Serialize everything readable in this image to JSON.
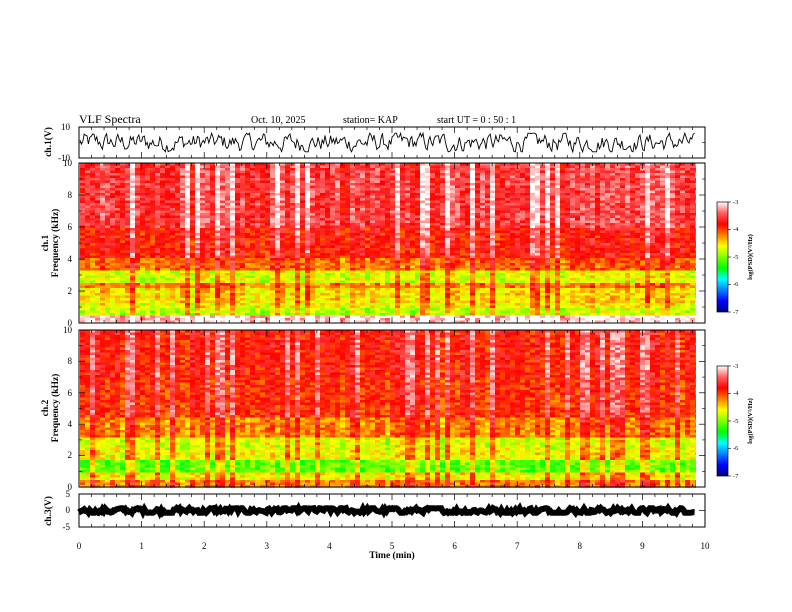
{
  "header": {
    "title": "VLF Spectra",
    "date": "Oct. 10, 2025",
    "station": "station= KAP",
    "start": "start  UT  =   0  : 50 : 1"
  },
  "colors": {
    "spectrum_ramp": [
      "#000080",
      "#0000ff",
      "#0080ff",
      "#00ffff",
      "#00ff00",
      "#80ff00",
      "#ffff00",
      "#ff8000",
      "#ff0000",
      "#ff6060",
      "#ffffff"
    ],
    "axis": "#000000",
    "background": "#ffffff"
  },
  "chart_data": [
    {
      "id": "ch1-waveform",
      "type": "line",
      "ylabel": "ch.1(V)",
      "ylim": [
        -10,
        10
      ],
      "ytick_labels": [
        "10",
        "-10"
      ],
      "xlim": [
        0,
        10
      ],
      "data_extent_min": 9.85,
      "series": [
        {
          "name": "ch.1 waveform",
          "amplitude_range": [
            -6,
            6
          ]
        }
      ]
    },
    {
      "id": "ch1-spectrogram",
      "type": "heatmap",
      "ylabel_line1": "ch.1",
      "ylabel_line2": "Frequency  (kHz)",
      "ylim": [
        0,
        10
      ],
      "ytick_labels": [
        "0",
        "2",
        "4",
        "6",
        "8",
        "10"
      ],
      "xlim": [
        0,
        10
      ],
      "data_extent_min": 9.85,
      "color_scale": {
        "label": "log(PSD)(V²/Hz)",
        "range": [
          -7,
          -3
        ],
        "tick_labels": [
          "-3",
          "-4",
          "-5",
          "-6",
          "-7"
        ]
      },
      "bands": [
        {
          "freq_khz": [
            0.0,
            0.6
          ],
          "level": -3.1
        },
        {
          "freq_khz": [
            0.6,
            1.0
          ],
          "level": -4.8
        },
        {
          "freq_khz": [
            1.0,
            1.4
          ],
          "level": -4.6
        },
        {
          "freq_khz": [
            1.4,
            2.2
          ],
          "level": -4.5
        },
        {
          "freq_khz": [
            2.2,
            2.6
          ],
          "level": -4.2
        },
        {
          "freq_khz": [
            2.6,
            3.4
          ],
          "level": -4.7
        },
        {
          "freq_khz": [
            3.4,
            4.2
          ],
          "level": -4.1
        },
        {
          "freq_khz": [
            4.2,
            6.0
          ],
          "level": -3.8
        },
        {
          "freq_khz": [
            6.0,
            10.0
          ],
          "level": -3.55
        }
      ]
    },
    {
      "id": "ch2-spectrogram",
      "type": "heatmap",
      "ylabel_line1": "ch.2",
      "ylabel_line2": "Frequency  (kHz)",
      "ylim": [
        0,
        10
      ],
      "ytick_labels": [
        "0",
        "2",
        "4",
        "6",
        "8",
        "10"
      ],
      "xlim": [
        0,
        10
      ],
      "data_extent_min": 9.85,
      "color_scale": {
        "label": "log(PSD)(V²/Hz)",
        "range": [
          -7,
          -3
        ],
        "tick_labels": [
          "-3",
          "-4",
          "-5",
          "-6",
          "-7"
        ]
      },
      "bands": [
        {
          "freq_khz": [
            0.0,
            0.5
          ],
          "level": -4.2
        },
        {
          "freq_khz": [
            0.5,
            1.0
          ],
          "level": -4.6
        },
        {
          "freq_khz": [
            1.0,
            1.8
          ],
          "level": -5.1
        },
        {
          "freq_khz": [
            1.8,
            2.4
          ],
          "level": -4.6
        },
        {
          "freq_khz": [
            2.4,
            3.2
          ],
          "level": -4.7
        },
        {
          "freq_khz": [
            3.2,
            4.5
          ],
          "level": -4.2
        },
        {
          "freq_khz": [
            4.5,
            7.0
          ],
          "level": -3.9
        },
        {
          "freq_khz": [
            7.0,
            10.0
          ],
          "level": -3.8
        }
      ]
    },
    {
      "id": "ch3-waveform",
      "type": "line",
      "ylabel": "ch.3(V)",
      "ylim": [
        -5,
        5
      ],
      "ytick_labels": [
        "5",
        "0",
        "-5"
      ],
      "xlim": [
        0,
        10
      ],
      "data_extent_min": 9.85,
      "series": [
        {
          "name": "ch.3 waveform",
          "amplitude_range": [
            -0.7,
            0.7
          ]
        }
      ]
    }
  ],
  "x_axis": {
    "label": "Time  (min)",
    "ticks": [
      "0",
      "1",
      "2",
      "3",
      "4",
      "5",
      "6",
      "7",
      "8",
      "9",
      "10"
    ]
  }
}
